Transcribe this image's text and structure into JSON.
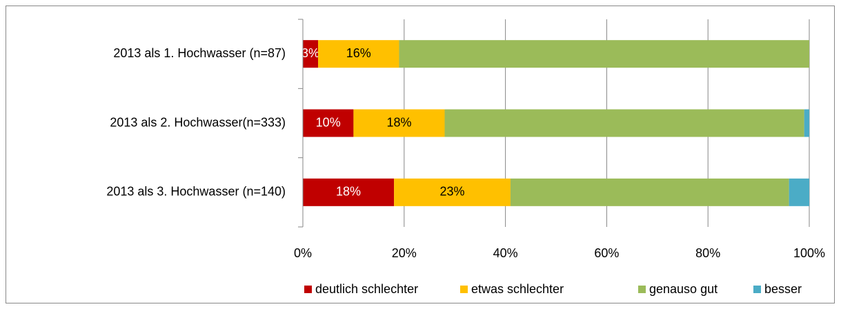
{
  "chart_data": {
    "type": "stacked-bar-horizontal",
    "categories": [
      "2013 als 1. Hochwasser (n=87)",
      "2013 als 2. Hochwasser(n=333)",
      "2013 als 3. Hochwasser (n=140)"
    ],
    "series": [
      {
        "name": "deutlich schlechter",
        "color": "#c00000",
        "values": [
          3,
          10,
          18
        ],
        "value_labels": [
          "3%",
          "10%",
          "18%"
        ],
        "label_color": "#ffffff"
      },
      {
        "name": "etwas schlechter",
        "color": "#ffc000",
        "values": [
          16,
          18,
          23
        ],
        "value_labels": [
          "16%",
          "18%",
          "23%"
        ],
        "label_color": "#000000"
      },
      {
        "name": "genauso gut",
        "color": "#9bbb59",
        "values": [
          81,
          71,
          55
        ]
      },
      {
        "name": "besser",
        "color": "#4bacc6",
        "values": [
          0,
          1,
          4
        ]
      }
    ],
    "xlim": [
      0,
      100
    ],
    "xticks": [
      {
        "value": 0,
        "label": "0%"
      },
      {
        "value": 20,
        "label": "20%"
      },
      {
        "value": 40,
        "label": "40%"
      },
      {
        "value": 60,
        "label": "60%"
      },
      {
        "value": 80,
        "label": "80%"
      },
      {
        "value": 100,
        "label": "100%"
      }
    ],
    "grid": true,
    "legend": "bottom"
  }
}
